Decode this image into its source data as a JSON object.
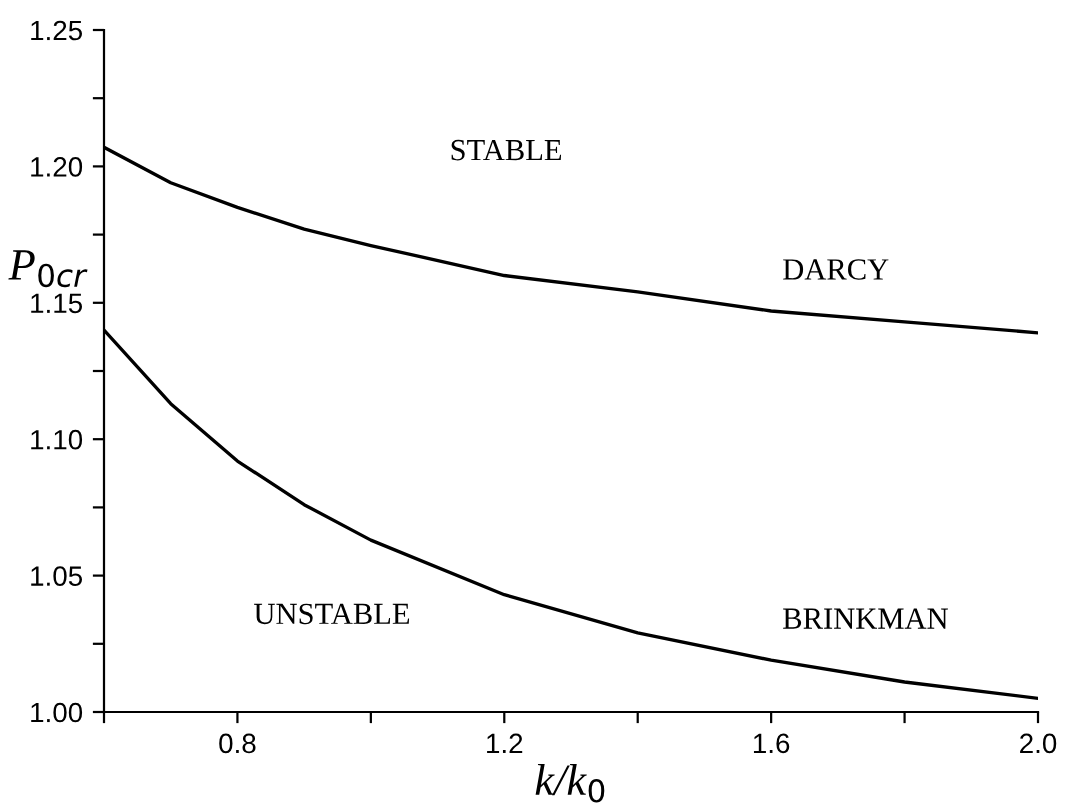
{
  "chart_data": {
    "type": "line",
    "xlabel": "k/k$_{0}$",
    "ylabel": "P$_{0cr}$",
    "xlim": [
      0.6,
      2.0
    ],
    "ylim": [
      1.0,
      1.25
    ],
    "xticks": [
      {
        "value": 0.6,
        "label": null
      },
      {
        "value": 0.8,
        "label": "0.8"
      },
      {
        "value": 1.0,
        "label": null
      },
      {
        "value": 1.2,
        "label": "1.2"
      },
      {
        "value": 1.4,
        "label": null
      },
      {
        "value": 1.6,
        "label": "1.6"
      },
      {
        "value": 1.8,
        "label": null
      },
      {
        "value": 2.0,
        "label": "2.0"
      }
    ],
    "yticks": [
      {
        "value": 1.0,
        "label": "1.00"
      },
      {
        "value": 1.025,
        "label": null
      },
      {
        "value": 1.05,
        "label": "1.05"
      },
      {
        "value": 1.075,
        "label": null
      },
      {
        "value": 1.1,
        "label": "1.10"
      },
      {
        "value": 1.125,
        "label": null
      },
      {
        "value": 1.15,
        "label": "1.15"
      },
      {
        "value": 1.175,
        "label": null
      },
      {
        "value": 1.2,
        "label": "1.20"
      },
      {
        "value": 1.225,
        "label": null
      },
      {
        "value": 1.25,
        "label": "1.25"
      }
    ],
    "grid": false,
    "legend": false,
    "marker": "none",
    "line_style": "solid",
    "series": [
      {
        "name": "DARCY",
        "color": "#000000",
        "x": [
          0.6,
          0.7,
          0.8,
          0.9,
          1.0,
          1.2,
          1.4,
          1.6,
          1.8,
          2.0
        ],
        "values": [
          1.207,
          1.194,
          1.185,
          1.177,
          1.171,
          1.16,
          1.154,
          1.147,
          1.143,
          1.139
        ]
      },
      {
        "name": "BRINKMAN",
        "color": "#000000",
        "x": [
          0.6,
          0.7,
          0.8,
          0.9,
          1.0,
          1.2,
          1.4,
          1.6,
          1.8,
          2.0
        ],
        "values": [
          1.14,
          1.113,
          1.092,
          1.076,
          1.063,
          1.043,
          1.029,
          1.019,
          1.011,
          1.005
        ]
      }
    ],
    "annotations": [
      "STABLE",
      "UNSTABLE"
    ]
  }
}
